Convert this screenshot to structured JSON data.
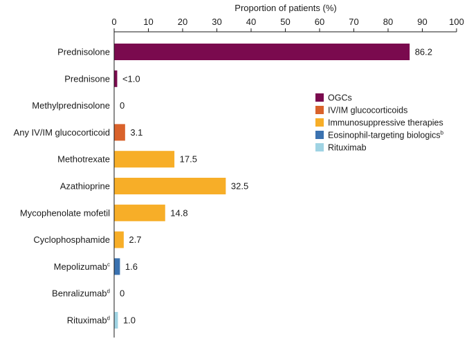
{
  "chart_data": {
    "type": "bar",
    "orientation": "horizontal",
    "title": "",
    "xlabel": "Proportion of patients (%)",
    "ylabel": "",
    "xlim": [
      0,
      100
    ],
    "x_ticks": [
      "0",
      "10",
      "20",
      "30",
      "40",
      "50",
      "60",
      "70",
      "80",
      "90",
      "100"
    ],
    "axis_position": "top",
    "grid": false,
    "legend_position": "right",
    "categories": [
      {
        "label": "Prednisolone",
        "sup": "",
        "value": 86.2,
        "value_label": "86.2",
        "group": 0
      },
      {
        "label": "Prednisone",
        "sup": "",
        "value": 0.8,
        "value_label": "<1.0",
        "group": 0
      },
      {
        "label": "Methylprednisolone",
        "sup": "",
        "value": 0,
        "value_label": "0",
        "group": 0
      },
      {
        "label": "Any IV/IM glucocorticoid",
        "sup": "",
        "value": 3.1,
        "value_label": "3.1",
        "group": 1
      },
      {
        "label": "Methotrexate",
        "sup": "",
        "value": 17.5,
        "value_label": "17.5",
        "group": 2
      },
      {
        "label": "Azathioprine",
        "sup": "",
        "value": 32.5,
        "value_label": "32.5",
        "group": 2
      },
      {
        "label": "Mycophenolate mofetil",
        "sup": "",
        "value": 14.8,
        "value_label": "14.8",
        "group": 2
      },
      {
        "label": "Cyclophosphamide",
        "sup": "",
        "value": 2.7,
        "value_label": "2.7",
        "group": 2
      },
      {
        "label": "Mepolizumab",
        "sup": "c",
        "value": 1.6,
        "value_label": "1.6",
        "group": 3
      },
      {
        "label": "Benralizumab",
        "sup": "d",
        "value": 0,
        "value_label": "0",
        "group": 3
      },
      {
        "label": "Rituximab",
        "sup": "d",
        "value": 1.0,
        "value_label": "1.0",
        "group": 4
      }
    ],
    "legend": [
      {
        "label": "OGCs",
        "sup": "",
        "color": "#7a0a4e"
      },
      {
        "label": "IV/IM glucocorticoids",
        "sup": "",
        "color": "#d9622b"
      },
      {
        "label": "Immunosuppressive therapies",
        "sup": "",
        "color": "#f7ae28"
      },
      {
        "label": "Eosinophil-targeting biologics",
        "sup": "b",
        "color": "#3b72b0"
      },
      {
        "label": "Rituximab",
        "sup": "",
        "color": "#9fd3e3"
      }
    ]
  }
}
